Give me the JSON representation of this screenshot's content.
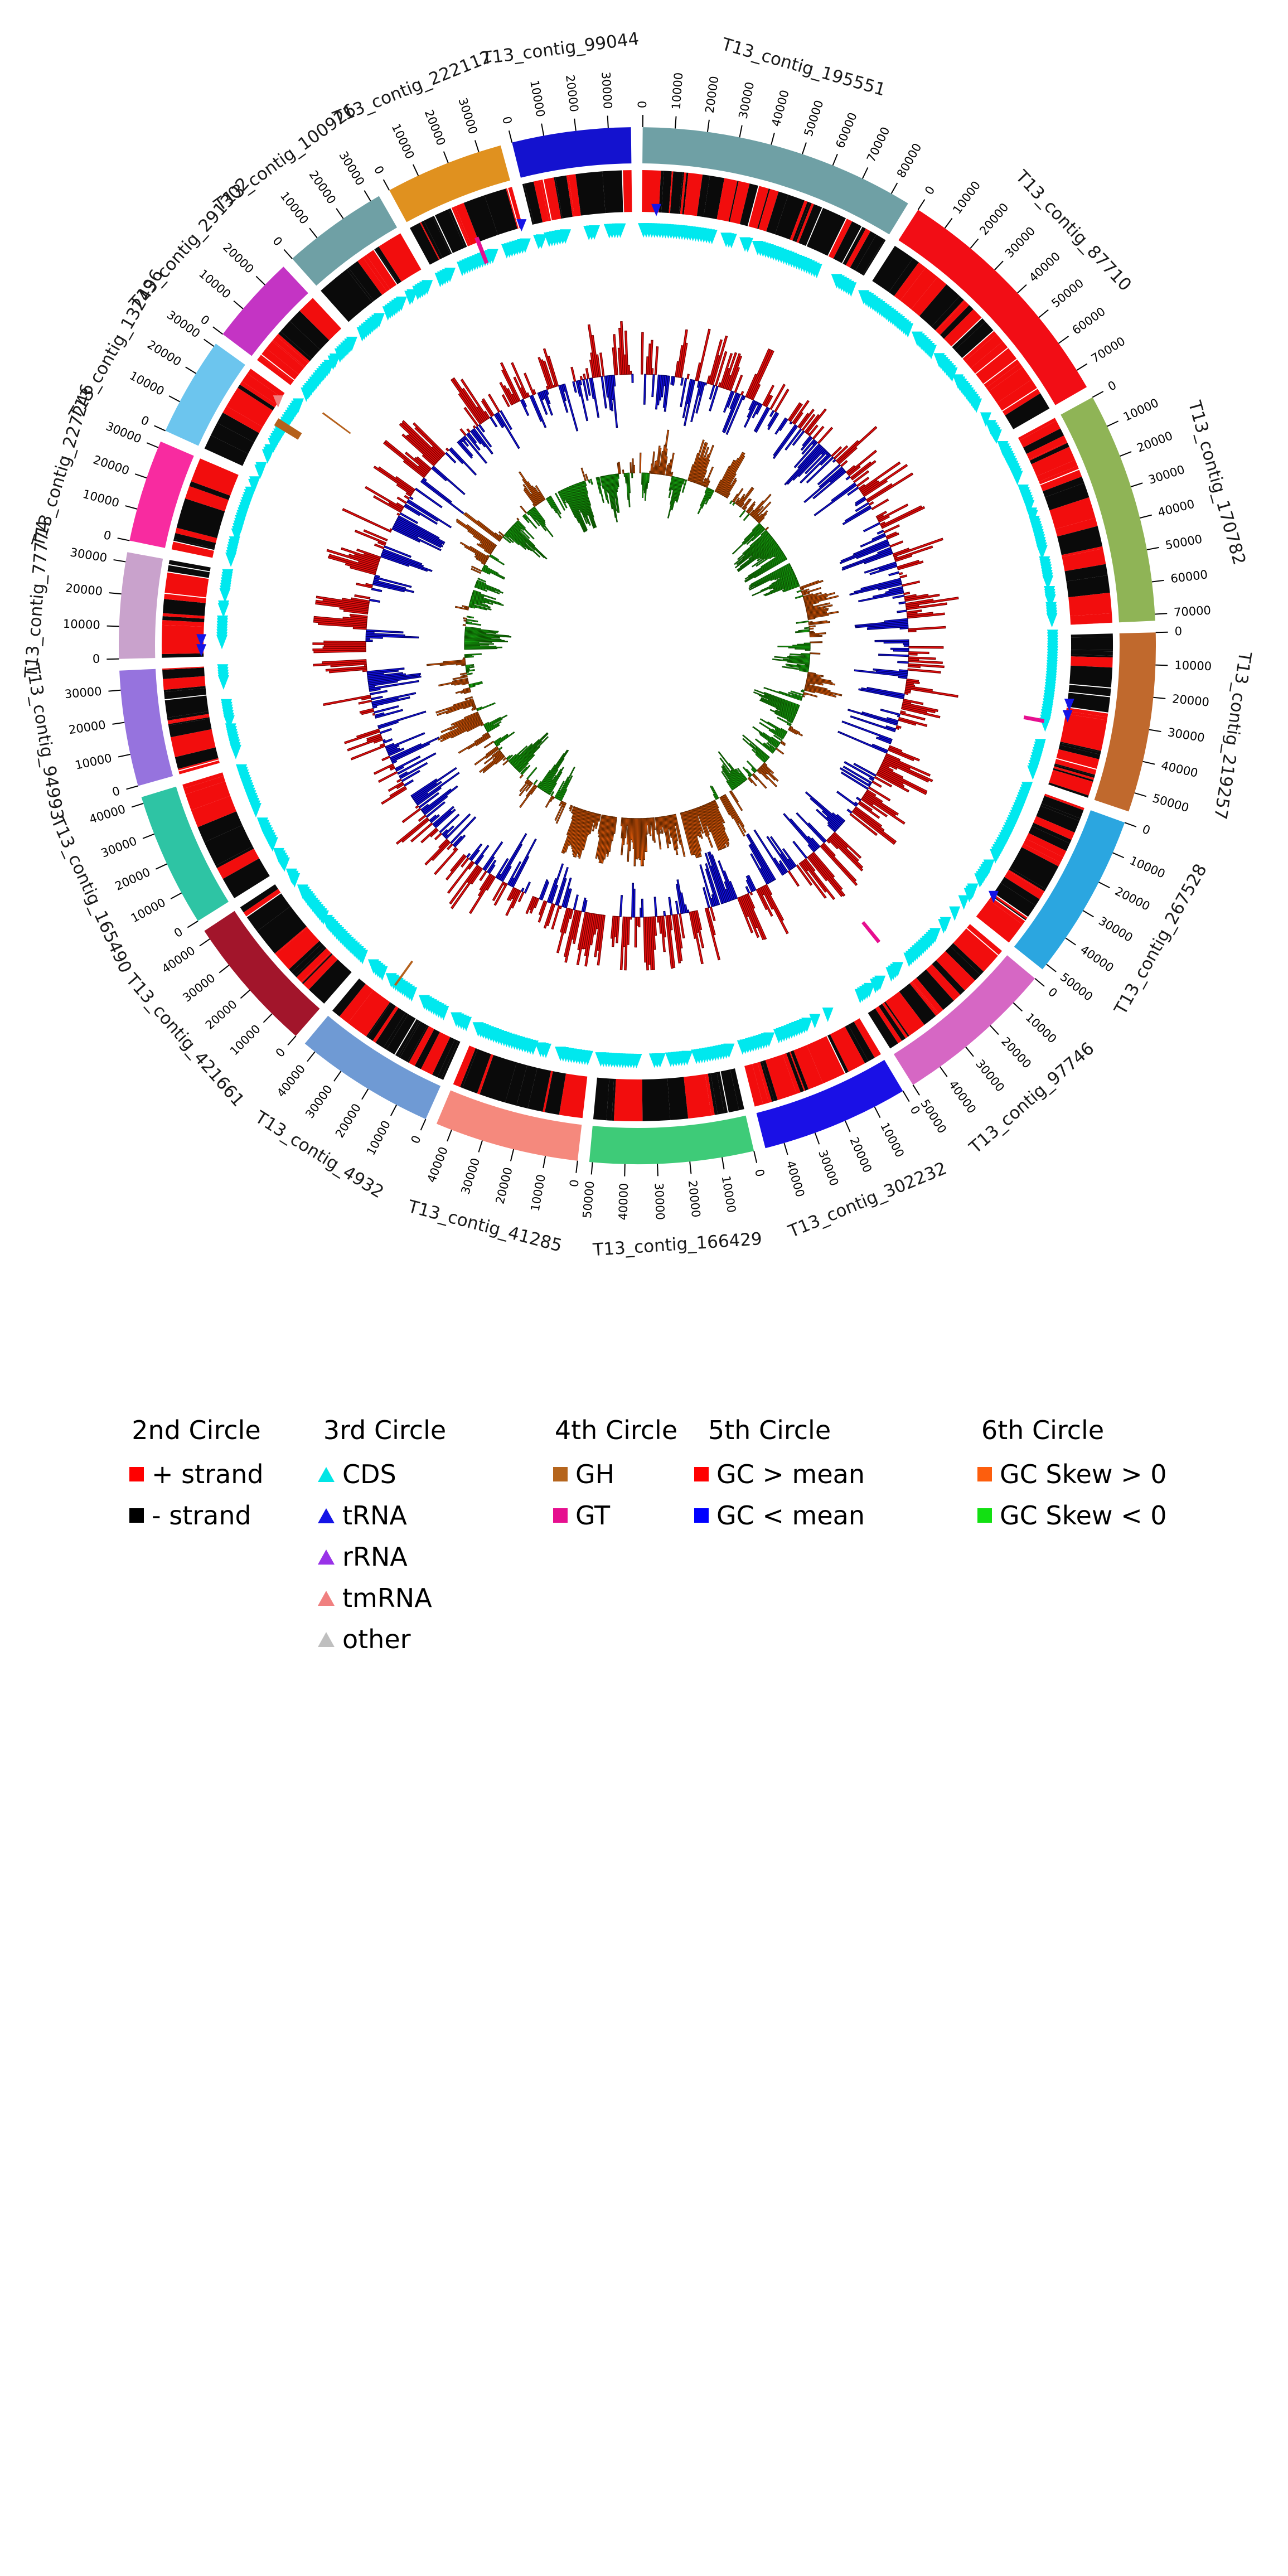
{
  "chart_data": {
    "type": "circos_genome_plot",
    "description": "Circular genome map of assembly T13 with six concentric circles",
    "tick_interval_bp": 10000,
    "circles": {
      "first": "contig ideogram with coordinate ticks",
      "second": "+ strand (red) / - strand (black) feature blocks",
      "third": "gene markers: CDS, tRNA, rRNA, tmRNA, other",
      "fourth": "GH (brown) and GT (magenta) marks",
      "fifth": "GC content: red bars outward GC > mean, blue bars inward GC < mean",
      "sixth": "GC skew: orange bars outward skew > 0, green bars inward skew < 0"
    },
    "segments": [
      {
        "name": "T13_contig_195551",
        "length_bp": 86000,
        "color": "#6fa0a5"
      },
      {
        "name": "T13_contig_87710",
        "length_bp": 76000,
        "color": "#f20d15"
      },
      {
        "name": "T13_contig_170782",
        "length_bp": 72000,
        "color": "#8fb456"
      },
      {
        "name": "T13_contig_219257",
        "length_bp": 56000,
        "color": "#c0692d"
      },
      {
        "name": "T13_contig_267528",
        "length_bp": 52000,
        "color": "#2ba6e0"
      },
      {
        "name": "T13_contig_97746",
        "length_bp": 50000,
        "color": "#d667c4"
      },
      {
        "name": "T13_contig_302232",
        "length_bp": 46000,
        "color": "#1a10e6"
      },
      {
        "name": "T13_contig_166429",
        "length_bp": 51000,
        "color": "#3ecb78"
      },
      {
        "name": "T13_contig_41285",
        "length_bp": 45000,
        "color": "#f5897d"
      },
      {
        "name": "T13_contig_4932",
        "length_bp": 44000,
        "color": "#6f9ad4"
      },
      {
        "name": "T13_contig_421661",
        "length_bp": 43000,
        "color": "#a2152b"
      },
      {
        "name": "T13_contig_165490",
        "length_bp": 42000,
        "color": "#2ec4a4"
      },
      {
        "name": "T13_contig_94993",
        "length_bp": 36000,
        "color": "#9673de"
      },
      {
        "name": "T13_contig_77774",
        "length_bp": 33000,
        "color": "#c9a2cc"
      },
      {
        "name": "T13_contig_227246",
        "length_bp": 32000,
        "color": "#f82ba0"
      },
      {
        "name": "T13_contig_132496",
        "length_bp": 31000,
        "color": "#6cc5ee"
      },
      {
        "name": "T13_contig_291302",
        "length_bp": 28000,
        "color": "#c434c4"
      },
      {
        "name": "T13_contig_100926",
        "length_bp": 33000,
        "color": "#6fa0a5"
      },
      {
        "name": "T13_contig_222112",
        "length_bp": 37000,
        "color": "#e0911f"
      },
      {
        "name": "T13_contig_99044",
        "length_bp": 37000,
        "color": "#1412cf"
      }
    ],
    "third_circle_markers": {
      "cds_color": "#00e8ee",
      "trna_color": "#1414e6",
      "tmrna_color": "#f08080",
      "trna_angles_deg": [
        2.5,
        97.8,
        99.3,
        125.2,
        269.4,
        270.7,
        344.6
      ],
      "tmrna_angles_deg": [
        304.2
      ]
    },
    "fourth_circle_marks": [
      {
        "type": "GT",
        "angle_deg": 338.5,
        "r1": 737,
        "r2": 787,
        "aw": 0.55
      },
      {
        "type": "GT",
        "angle_deg": 100.5,
        "r1": 705,
        "r2": 742,
        "aw": 0.55
      },
      {
        "type": "GT",
        "angle_deg": 140.8,
        "r1": 640,
        "r2": 686,
        "aw": 0.55
      },
      {
        "type": "GH",
        "angle_deg": 301.8,
        "r1": 712,
        "r2": 762,
        "aw": 1.1
      },
      {
        "type": "GH",
        "angle_deg": 215.5,
        "r1": 695,
        "r2": 748,
        "aw": 0.3
      },
      {
        "type": "GH",
        "angle_deg": 306.5,
        "r1": 640,
        "r2": 702,
        "aw": 0.25
      }
    ],
    "histogram_colors": {
      "gc_above": "#e60f0f",
      "gc_below": "#1512e6",
      "skew_above": "#f4610c",
      "skew_below": "#1ddd1d"
    },
    "strand_colors": {
      "plus": "#f20d0d",
      "minus": "#0a0a0a"
    }
  },
  "legend": {
    "columns": [
      {
        "title": "2nd Circle",
        "items": [
          {
            "label": "+ strand",
            "color": "#ff0000",
            "marker": "square"
          },
          {
            "label": "- strand",
            "color": "#000000",
            "marker": "square"
          }
        ]
      },
      {
        "title": "3rd Circle",
        "items": [
          {
            "label": "CDS",
            "color": "#00e5e5",
            "marker": "triangle"
          },
          {
            "label": "tRNA",
            "color": "#1414e6",
            "marker": "triangle"
          },
          {
            "label": "rRNA",
            "color": "#9932e8",
            "marker": "triangle"
          },
          {
            "label": "tmRNA",
            "color": "#f08080",
            "marker": "triangle"
          },
          {
            "label": "other",
            "color": "#bfbfbf",
            "marker": "triangle"
          }
        ]
      },
      {
        "title": "4th Circle",
        "items": [
          {
            "label": "GH",
            "color": "#b5651d",
            "marker": "square"
          },
          {
            "label": "GT",
            "color": "#e60f8f",
            "marker": "square"
          }
        ]
      },
      {
        "title": "5th Circle",
        "items": [
          {
            "label": "GC > mean",
            "color": "#ff0000",
            "marker": "square"
          },
          {
            "label": "GC < mean",
            "color": "#0000ff",
            "marker": "square"
          }
        ]
      },
      {
        "title": "6th Circle",
        "items": [
          {
            "label": "GC Skew > 0",
            "color": "#fd5e0d",
            "marker": "square"
          },
          {
            "label": "GC Skew < 0",
            "color": "#12e012",
            "marker": "square"
          }
        ]
      }
    ]
  }
}
